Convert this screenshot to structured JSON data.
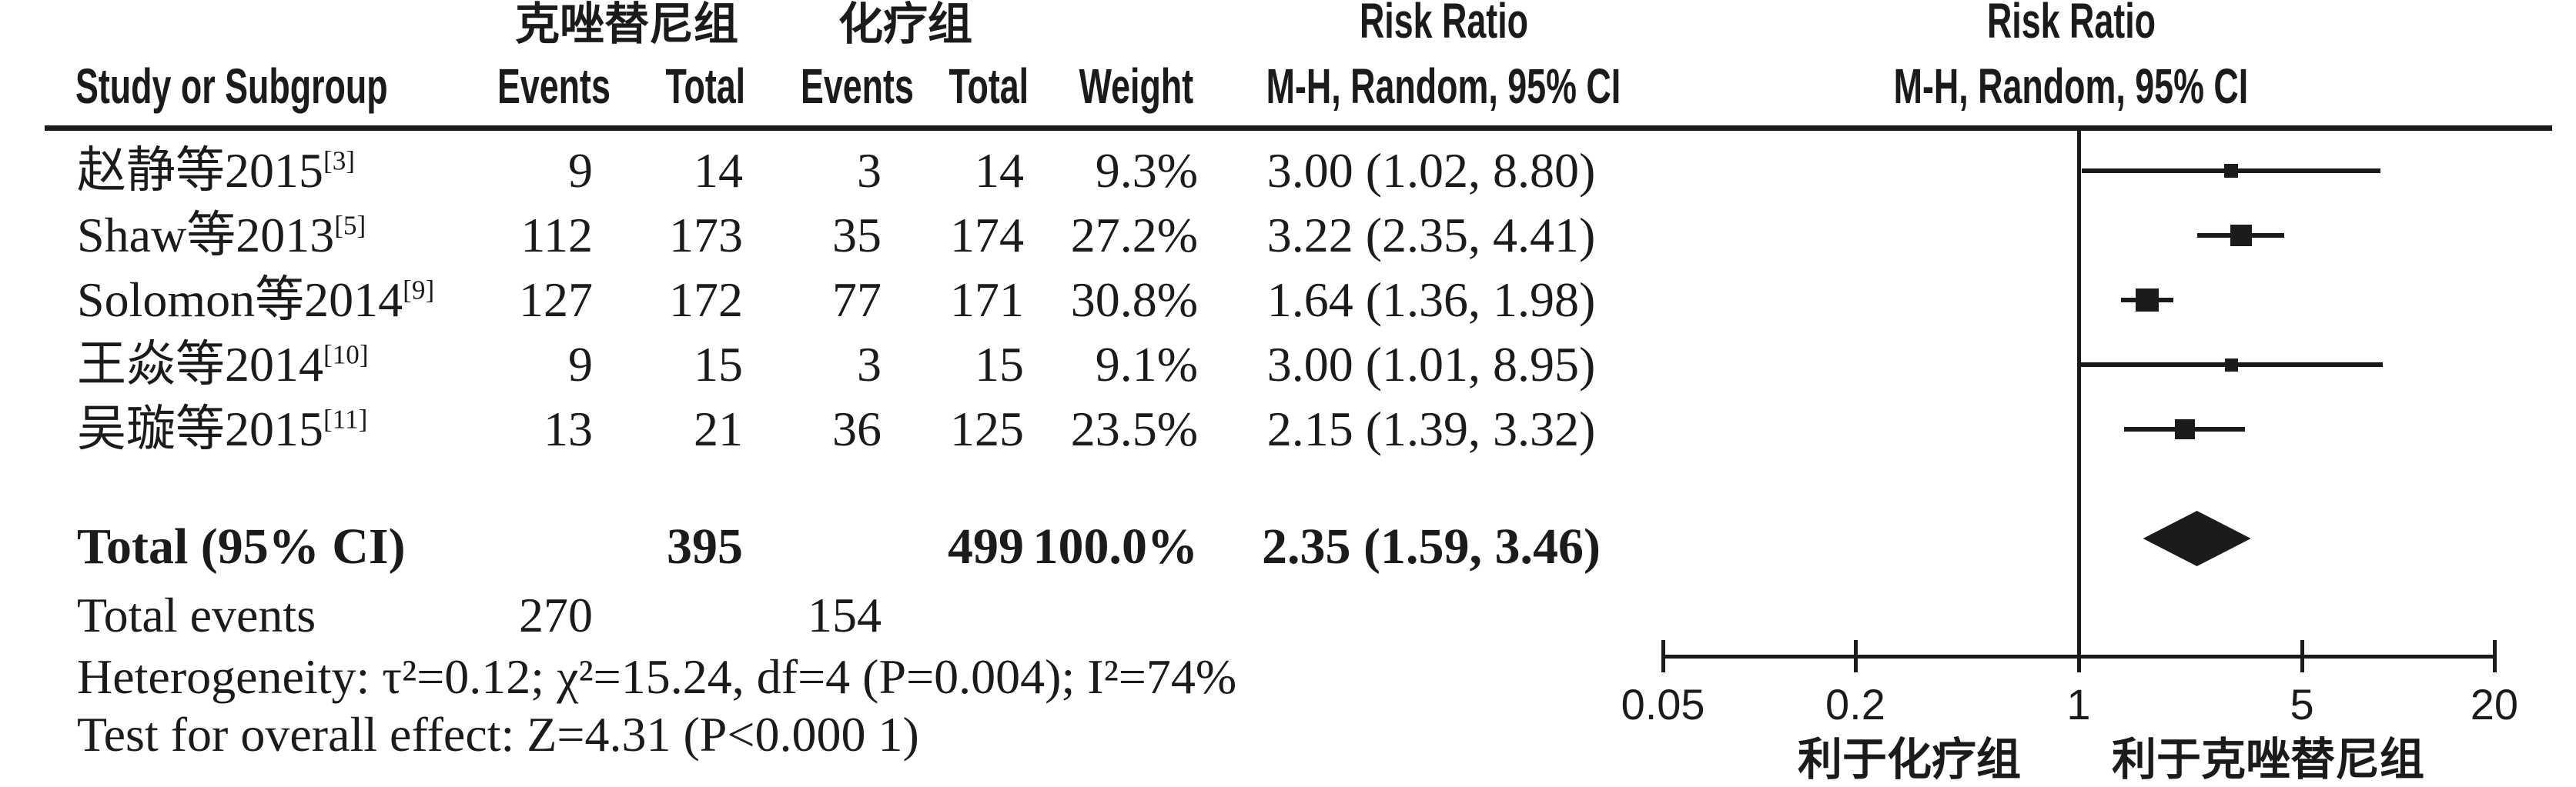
{
  "figure": {
    "columns": {
      "study": "Study or Subgroup",
      "events": "Events",
      "total": "Total",
      "weight": "Weight",
      "risk_ratio": "Risk Ratio",
      "mh_random": "M-H, Random, 95% CI"
    },
    "groups": {
      "experimental": "克唑替尼组",
      "control": "化疗组"
    },
    "total_row": {
      "label": "Total (95% CI)",
      "total_exp": "395",
      "total_ctrl": "499",
      "weight": "100.0%",
      "rr_ci_text": "2.35 (1.59, 3.46)"
    },
    "total_events_row": {
      "label": "Total events",
      "events_exp": "270",
      "events_ctrl": "154"
    },
    "heterogeneity": "Heterogeneity: τ²=0.12; χ²=15.24, df=4 (P=0.004); I²=74%",
    "overall_effect": "Test for overall effect: Z=4.31 (P<0.000 1)"
  },
  "chart_data": {
    "type": "forest",
    "effect_measure": "Risk Ratio",
    "method": "M-H, Random, 95% CI",
    "x_scale": "log",
    "x_range": [
      0.05,
      20
    ],
    "x_ticks": [
      "0.05",
      "0.2",
      "1",
      "5",
      "20"
    ],
    "null_line": 1,
    "favours_left": "利于化疗组",
    "favours_right": "利于克唑替尼组",
    "studies": [
      {
        "name": "赵静等2015",
        "ref": "[3]",
        "events_exp": "9",
        "total_exp": "14",
        "events_ctrl": "3",
        "total_ctrl": "14",
        "weight": "9.3%",
        "weight_pct": 9.3,
        "rr": 3.0,
        "ci_low": 1.02,
        "ci_high": 8.8,
        "rr_ci_text": "3.00 (1.02, 8.80)"
      },
      {
        "name": "Shaw等2013",
        "ref": "[5]",
        "events_exp": "112",
        "total_exp": "173",
        "events_ctrl": "35",
        "total_ctrl": "174",
        "weight": "27.2%",
        "weight_pct": 27.2,
        "rr": 3.22,
        "ci_low": 2.35,
        "ci_high": 4.41,
        "rr_ci_text": "3.22 (2.35, 4.41)"
      },
      {
        "name": "Solomon等2014",
        "ref": "[9]",
        "events_exp": "127",
        "total_exp": "172",
        "events_ctrl": "77",
        "total_ctrl": "171",
        "weight": "30.8%",
        "weight_pct": 30.8,
        "rr": 1.64,
        "ci_low": 1.36,
        "ci_high": 1.98,
        "rr_ci_text": "1.64 (1.36, 1.98)"
      },
      {
        "name": "王焱等2014",
        "ref": "[10]",
        "events_exp": "9",
        "total_exp": "15",
        "events_ctrl": "3",
        "total_ctrl": "15",
        "weight": "9.1%",
        "weight_pct": 9.1,
        "rr": 3.0,
        "ci_low": 1.01,
        "ci_high": 8.95,
        "rr_ci_text": "3.00 (1.01, 8.95)"
      },
      {
        "name": "吴璇等2015",
        "ref": "[11]",
        "events_exp": "13",
        "total_exp": "21",
        "events_ctrl": "36",
        "total_ctrl": "125",
        "weight": "23.5%",
        "weight_pct": 23.5,
        "rr": 2.15,
        "ci_low": 1.39,
        "ci_high": 3.32,
        "rr_ci_text": "2.15 (1.39, 3.32)"
      }
    ],
    "overall": {
      "rr": 2.35,
      "ci_low": 1.59,
      "ci_high": 3.46
    }
  }
}
